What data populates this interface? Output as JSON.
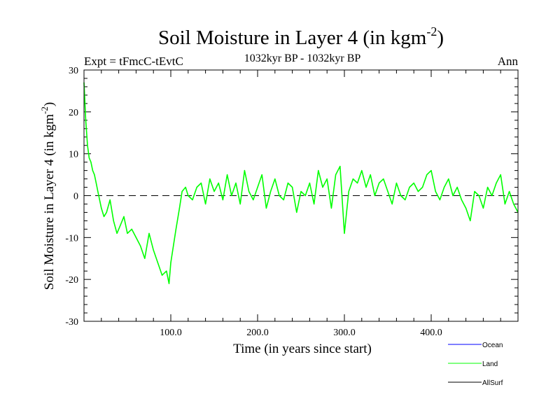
{
  "chart_data": {
    "type": "line",
    "title": "Soil Moisture in Layer 4 (in kgm",
    "title_sup": "-2",
    "title_close": ")",
    "subtitle_left": "Expt = tFmcC-tEvtC",
    "subtitle_center": "1032kyr BP - 1032kyr BP",
    "subtitle_right": "Ann",
    "xlabel": "Time (in years since start)",
    "ylabel": "Soil Moisture in Layer 4 (in kgm",
    "ylabel_sup": "-2",
    "ylabel_close": ")",
    "xlim": [
      0,
      500
    ],
    "ylim": [
      -30,
      30
    ],
    "x_ticks": [
      100,
      200,
      300,
      400
    ],
    "x_tick_labels": [
      "100.0",
      "200.0",
      "300.0",
      "400.0"
    ],
    "y_ticks": [
      -30,
      -20,
      -10,
      0,
      10,
      20,
      30
    ],
    "y_tick_labels": [
      "-30",
      "-20",
      "-10",
      "0",
      "10",
      "20",
      "30"
    ],
    "reference_line": 0,
    "series": [
      {
        "name": "Ocean",
        "color": "#0000ff",
        "values": []
      },
      {
        "name": "Land",
        "color": "#00ff00",
        "x": [
          0,
          2,
          4,
          6,
          8,
          10,
          12,
          14,
          16,
          18,
          20,
          23,
          26,
          30,
          34,
          38,
          42,
          46,
          50,
          55,
          60,
          65,
          70,
          75,
          80,
          85,
          90,
          95,
          98,
          100,
          103,
          106,
          110,
          113,
          117,
          120,
          125,
          130,
          135,
          140,
          145,
          150,
          155,
          160,
          165,
          170,
          175,
          180,
          185,
          190,
          195,
          200,
          205,
          210,
          215,
          220,
          225,
          230,
          235,
          240,
          245,
          250,
          255,
          260,
          265,
          270,
          275,
          280,
          285,
          290,
          295,
          300,
          305,
          310,
          315,
          320,
          325,
          330,
          335,
          340,
          345,
          350,
          355,
          360,
          365,
          370,
          375,
          380,
          385,
          390,
          395,
          400,
          405,
          410,
          415,
          420,
          425,
          430,
          435,
          440,
          445,
          450,
          455,
          460,
          465,
          470,
          475,
          480,
          485,
          490,
          495,
          500
        ],
        "values": [
          27,
          18,
          12,
          9,
          8,
          6,
          5,
          3,
          1,
          -1,
          -3,
          -5,
          -4,
          -1,
          -6,
          -9,
          -7,
          -5,
          -9,
          -8,
          -10,
          -12,
          -15,
          -9,
          -13,
          -16,
          -19,
          -18,
          -21,
          -16,
          -12,
          -8,
          -3,
          1,
          2,
          0,
          -1,
          2,
          3,
          -2,
          4,
          1,
          3,
          -1,
          5,
          0,
          3,
          -2,
          6,
          1,
          -1,
          2,
          5,
          -3,
          1,
          4,
          0,
          -1,
          3,
          2,
          -4,
          1,
          0,
          3,
          -2,
          6,
          2,
          4,
          -3,
          5,
          7,
          -9,
          1,
          4,
          3,
          6,
          2,
          5,
          0,
          3,
          4,
          1,
          -2,
          3,
          0,
          -1,
          2,
          3,
          1,
          2,
          5,
          6,
          1,
          -1,
          2,
          4,
          0,
          2,
          -1,
          -3,
          -6,
          1,
          0,
          -3,
          2,
          0,
          3,
          5,
          -2,
          1,
          -2,
          -4
        ]
      },
      {
        "name": "AllSurf",
        "color": "#000000",
        "values": []
      }
    ],
    "legend": [
      {
        "label": "Ocean",
        "color": "#0000ff"
      },
      {
        "label": "Land",
        "color": "#00ff00"
      },
      {
        "label": "AllSurf",
        "color": "#000000"
      }
    ],
    "legend_position": "bottom-right",
    "grid": false
  }
}
